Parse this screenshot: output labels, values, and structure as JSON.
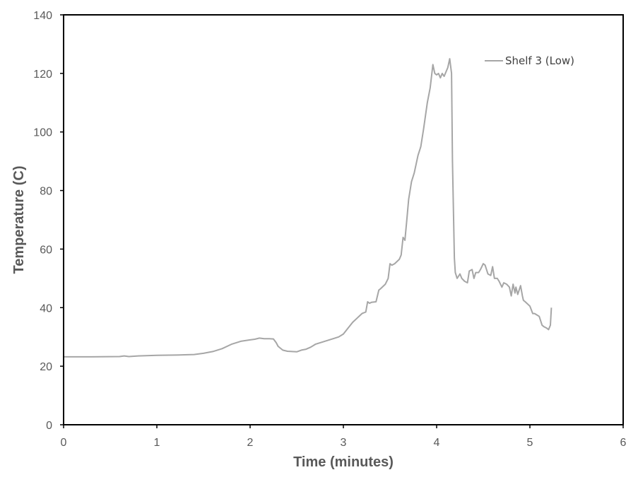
{
  "chart_data": {
    "type": "line",
    "title": "",
    "xlabel": "Time (minutes)",
    "ylabel": "Temperature (C)",
    "xlim": [
      0,
      6
    ],
    "ylim": [
      0,
      140
    ],
    "x_ticks": [
      "0",
      "1",
      "2",
      "3",
      "4",
      "5",
      "6"
    ],
    "y_ticks": [
      "0",
      "20",
      "40",
      "60",
      "80",
      "100",
      "120",
      "140"
    ],
    "grid": false,
    "legend_position": "top-right",
    "series": [
      {
        "name": "Shelf 3 (Low)",
        "color": "#a6a6a6",
        "x": [
          0,
          0.3,
          0.6,
          0.65,
          0.7,
          0.8,
          1.0,
          1.2,
          1.3,
          1.4,
          1.5,
          1.6,
          1.7,
          1.8,
          1.9,
          2.0,
          2.05,
          2.1,
          2.15,
          2.2,
          2.25,
          2.28,
          2.3,
          2.35,
          2.4,
          2.45,
          2.5,
          2.55,
          2.6,
          2.65,
          2.7,
          2.8,
          2.9,
          2.95,
          3.0,
          3.05,
          3.1,
          3.15,
          3.2,
          3.24,
          3.26,
          3.28,
          3.3,
          3.35,
          3.38,
          3.4,
          3.45,
          3.48,
          3.5,
          3.52,
          3.55,
          3.6,
          3.62,
          3.64,
          3.66,
          3.68,
          3.7,
          3.73,
          3.76,
          3.8,
          3.83,
          3.86,
          3.9,
          3.93,
          3.96,
          3.98,
          4.0,
          4.02,
          4.04,
          4.06,
          4.08,
          4.1,
          4.12,
          4.14,
          4.16,
          4.17,
          4.19,
          4.2,
          4.22,
          4.25,
          4.27,
          4.3,
          4.33,
          4.35,
          4.38,
          4.4,
          4.42,
          4.45,
          4.47,
          4.5,
          4.52,
          4.55,
          4.58,
          4.6,
          4.62,
          4.65,
          4.67,
          4.7,
          4.72,
          4.75,
          4.78,
          4.8,
          4.82,
          4.84,
          4.85,
          4.87,
          4.9,
          4.92,
          4.93,
          4.95,
          5.0,
          5.03,
          5.05,
          5.1,
          5.13,
          5.15,
          5.18,
          5.2,
          5.22,
          5.23
        ],
        "y": [
          23.2,
          23.2,
          23.3,
          23.5,
          23.3,
          23.5,
          23.7,
          23.8,
          23.9,
          24.0,
          24.4,
          25.0,
          26.0,
          27.5,
          28.5,
          29.0,
          29.2,
          29.6,
          29.4,
          29.4,
          29.3,
          28.0,
          26.8,
          25.5,
          25.1,
          25.0,
          24.9,
          25.5,
          25.8,
          26.5,
          27.5,
          28.5,
          29.5,
          30.0,
          31.0,
          33.0,
          35.0,
          36.5,
          38.0,
          38.5,
          42.0,
          41.5,
          41.8,
          42.0,
          46.0,
          46.5,
          48.0,
          50.0,
          55.0,
          54.5,
          55.0,
          56.5,
          58.0,
          64.0,
          63.0,
          70.0,
          77.0,
          83.0,
          86.0,
          92.0,
          95.0,
          101.0,
          110.0,
          115.0,
          123.0,
          120.0,
          119.5,
          120.0,
          118.5,
          120.0,
          119.0,
          120.5,
          122.0,
          125.0,
          120.0,
          90.0,
          57.0,
          52.0,
          50.0,
          51.5,
          50.0,
          49.0,
          48.5,
          52.5,
          53.0,
          50.0,
          52.0,
          52.0,
          53.0,
          55.0,
          54.5,
          51.5,
          51.0,
          54.0,
          50.0,
          50.0,
          49.0,
          47.0,
          48.5,
          48.0,
          47.0,
          44.0,
          48.0,
          45.0,
          47.0,
          44.5,
          47.5,
          44.0,
          42.5,
          42.0,
          40.5,
          38.0,
          38.0,
          37.0,
          34.0,
          33.5,
          33.0,
          32.5,
          34.0,
          40.0
        ]
      }
    ]
  }
}
